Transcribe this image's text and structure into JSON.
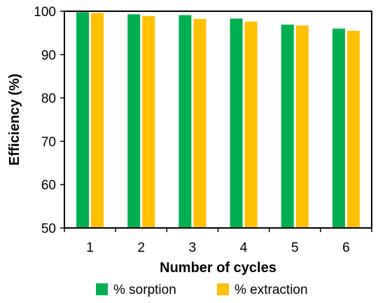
{
  "chart_data": {
    "type": "bar",
    "title": "",
    "xlabel": "Number of cycles",
    "ylabel": "Efficiency (%)",
    "categories": [
      "1",
      "2",
      "3",
      "4",
      "5",
      "6"
    ],
    "ylim": [
      50,
      100
    ],
    "yticks": [
      "50",
      "60",
      "70",
      "80",
      "90",
      "100"
    ],
    "grid": false,
    "legend_position": "bottom",
    "series": [
      {
        "name": "% sorption",
        "color": "#00b050",
        "values": [
          99.8,
          99.3,
          99.1,
          98.3,
          96.9,
          96.0
        ]
      },
      {
        "name": "% extraction",
        "color": "#ffc000",
        "values": [
          99.6,
          98.9,
          98.2,
          97.6,
          96.7,
          95.5
        ]
      }
    ]
  }
}
